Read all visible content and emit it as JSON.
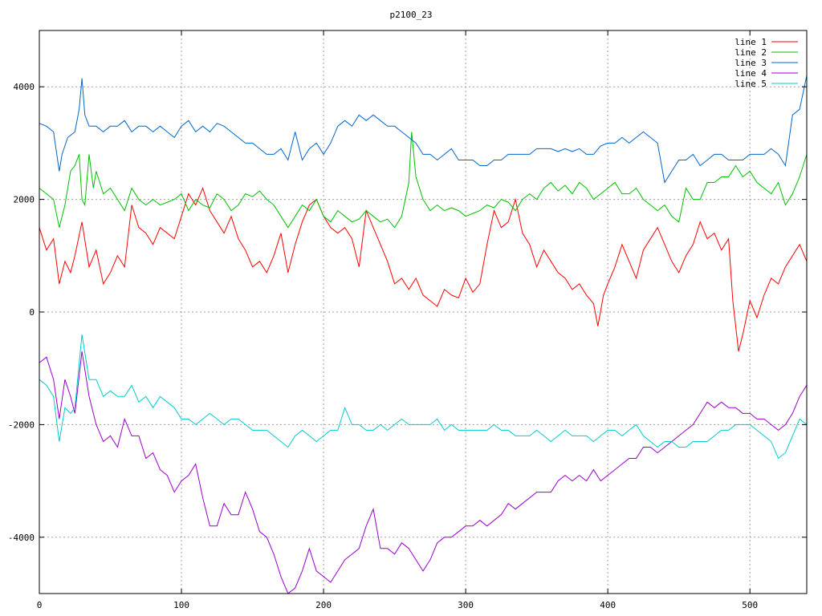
{
  "chart_data": {
    "type": "line",
    "title": "p2100_23",
    "xlabel": "",
    "ylabel": "",
    "xlim": [
      0,
      540
    ],
    "ylim": [
      -5000,
      5000
    ],
    "x_ticks": [
      0,
      100,
      200,
      300,
      400,
      500
    ],
    "y_ticks": [
      -4000,
      -2000,
      0,
      2000,
      4000
    ],
    "grid": true,
    "legend_position": "top-right",
    "series": [
      {
        "name": "line 1",
        "color": "#ff0000",
        "x": [
          0,
          5,
          10,
          14,
          18,
          22,
          25,
          30,
          35,
          40,
          45,
          50,
          55,
          60,
          65,
          70,
          75,
          80,
          85,
          90,
          95,
          100,
          105,
          110,
          115,
          120,
          125,
          130,
          135,
          140,
          145,
          150,
          155,
          160,
          165,
          170,
          175,
          180,
          185,
          190,
          195,
          200,
          205,
          210,
          215,
          220,
          225,
          230,
          235,
          240,
          245,
          250,
          255,
          260,
          265,
          270,
          275,
          280,
          285,
          290,
          295,
          300,
          305,
          310,
          315,
          320,
          325,
          330,
          335,
          340,
          345,
          350,
          355,
          360,
          365,
          370,
          375,
          380,
          385,
          390,
          393,
          397,
          400,
          405,
          410,
          415,
          420,
          425,
          430,
          435,
          440,
          445,
          450,
          455,
          460,
          465,
          470,
          475,
          480,
          485,
          488,
          492,
          495,
          500,
          505,
          510,
          515,
          520,
          525,
          530,
          535,
          540
        ],
        "y": [
          1500,
          1100,
          1300,
          500,
          900,
          700,
          1000,
          1600,
          800,
          1100,
          500,
          700,
          1000,
          800,
          1900,
          1500,
          1400,
          1200,
          1500,
          1400,
          1300,
          1700,
          2100,
          1900,
          2200,
          1800,
          1600,
          1400,
          1700,
          1300,
          1100,
          800,
          900,
          700,
          1000,
          1400,
          700,
          1200,
          1600,
          1900,
          2000,
          1700,
          1500,
          1400,
          1500,
          1300,
          800,
          1800,
          1500,
          1200,
          900,
          500,
          600,
          400,
          600,
          300,
          200,
          100,
          400,
          300,
          250,
          600,
          350,
          500,
          1200,
          1800,
          1500,
          1600,
          2000,
          1400,
          1200,
          800,
          1100,
          900,
          700,
          600,
          400,
          500,
          300,
          150,
          -250,
          300,
          500,
          800,
          1200,
          900,
          600,
          1100,
          1300,
          1500,
          1200,
          900,
          700,
          1000,
          1200,
          1600,
          1300,
          1400,
          1100,
          1300,
          200,
          -700,
          -400,
          200,
          -100,
          300,
          600,
          500,
          800,
          1000,
          1200,
          900
        ],
        "_": null
      },
      {
        "name": "line 2",
        "color": "#00c000",
        "x": [
          0,
          5,
          10,
          14,
          18,
          22,
          25,
          28,
          30,
          32,
          35,
          38,
          40,
          45,
          50,
          55,
          60,
          65,
          70,
          75,
          80,
          85,
          90,
          95,
          100,
          105,
          110,
          115,
          120,
          125,
          130,
          135,
          140,
          145,
          150,
          155,
          160,
          165,
          170,
          175,
          180,
          185,
          190,
          195,
          200,
          205,
          210,
          215,
          220,
          225,
          230,
          235,
          240,
          245,
          250,
          255,
          260,
          262,
          265,
          270,
          275,
          280,
          285,
          290,
          295,
          300,
          305,
          310,
          315,
          320,
          325,
          330,
          335,
          340,
          345,
          350,
          355,
          360,
          365,
          370,
          375,
          380,
          385,
          390,
          395,
          400,
          405,
          410,
          415,
          420,
          425,
          430,
          435,
          440,
          445,
          450,
          455,
          460,
          465,
          470,
          475,
          480,
          485,
          490,
          495,
          500,
          505,
          510,
          515,
          520,
          525,
          530,
          535,
          540
        ],
        "y": [
          2200,
          2100,
          2000,
          1500,
          1900,
          2500,
          2600,
          2800,
          2000,
          1900,
          2800,
          2200,
          2500,
          2100,
          2200,
          2000,
          1800,
          2200,
          2000,
          1900,
          2000,
          1900,
          1950,
          2000,
          2100,
          1800,
          2000,
          1900,
          1850,
          2100,
          2000,
          1800,
          1900,
          2100,
          2050,
          2150,
          2000,
          1900,
          1700,
          1500,
          1700,
          1900,
          1800,
          2000,
          1700,
          1600,
          1800,
          1700,
          1600,
          1650,
          1800,
          1700,
          1600,
          1650,
          1500,
          1700,
          2300,
          3200,
          2400,
          2000,
          1800,
          1900,
          1800,
          1850,
          1800,
          1700,
          1750,
          1800,
          1900,
          1850,
          2000,
          1950,
          1800,
          2000,
          2100,
          2000,
          2200,
          2300,
          2150,
          2250,
          2100,
          2300,
          2200,
          2000,
          2100,
          2200,
          2300,
          2100,
          2100,
          2200,
          2000,
          1900,
          1800,
          1900,
          1700,
          1600,
          2200,
          2000,
          2000,
          2300,
          2300,
          2400,
          2400,
          2600,
          2400,
          2500,
          2300,
          2200,
          2100,
          2300,
          1900,
          2100,
          2400,
          2800
        ],
        "_": null
      },
      {
        "name": "line 3",
        "color": "#0066cc",
        "x": [
          0,
          5,
          10,
          14,
          16,
          20,
          25,
          28,
          30,
          32,
          35,
          40,
          45,
          50,
          55,
          60,
          65,
          70,
          75,
          80,
          85,
          90,
          95,
          100,
          105,
          110,
          115,
          120,
          125,
          130,
          135,
          140,
          145,
          150,
          155,
          160,
          165,
          170,
          175,
          180,
          185,
          190,
          195,
          200,
          205,
          210,
          215,
          220,
          225,
          230,
          235,
          240,
          245,
          250,
          255,
          260,
          265,
          270,
          275,
          280,
          285,
          290,
          295,
          300,
          305,
          310,
          315,
          320,
          325,
          330,
          335,
          340,
          345,
          350,
          355,
          360,
          365,
          370,
          375,
          380,
          385,
          390,
          395,
          400,
          405,
          410,
          415,
          420,
          425,
          430,
          435,
          440,
          445,
          450,
          455,
          460,
          465,
          470,
          475,
          480,
          485,
          490,
          495,
          500,
          505,
          510,
          515,
          520,
          525,
          530,
          535,
          540
        ],
        "y": [
          3350,
          3300,
          3200,
          2500,
          2800,
          3100,
          3200,
          3600,
          4150,
          3500,
          3300,
          3300,
          3200,
          3300,
          3300,
          3400,
          3200,
          3300,
          3300,
          3200,
          3300,
          3200,
          3100,
          3300,
          3400,
          3200,
          3300,
          3200,
          3350,
          3300,
          3200,
          3100,
          3000,
          3000,
          2900,
          2800,
          2800,
          2900,
          2700,
          3200,
          2700,
          2900,
          3000,
          2800,
          3000,
          3300,
          3400,
          3300,
          3500,
          3400,
          3500,
          3400,
          3300,
          3300,
          3200,
          3100,
          3000,
          2800,
          2800,
          2700,
          2800,
          2900,
          2700,
          2700,
          2700,
          2600,
          2600,
          2700,
          2700,
          2800,
          2800,
          2800,
          2800,
          2900,
          2900,
          2900,
          2850,
          2900,
          2850,
          2900,
          2800,
          2800,
          2950,
          3000,
          3000,
          3100,
          3000,
          3100,
          3200,
          3100,
          3000,
          2300,
          2500,
          2700,
          2700,
          2800,
          2600,
          2700,
          2800,
          2800,
          2700,
          2700,
          2700,
          2800,
          2800,
          2800,
          2900,
          2800,
          2600,
          3500,
          3600,
          4200
        ],
        "_": null
      },
      {
        "name": "line 4",
        "color": "#9900cc",
        "x": [
          0,
          5,
          10,
          14,
          18,
          22,
          25,
          30,
          35,
          40,
          45,
          50,
          55,
          60,
          65,
          70,
          75,
          80,
          85,
          90,
          95,
          100,
          105,
          110,
          115,
          120,
          125,
          130,
          135,
          140,
          145,
          150,
          155,
          160,
          165,
          170,
          175,
          180,
          185,
          190,
          195,
          200,
          205,
          210,
          215,
          220,
          225,
          230,
          235,
          240,
          245,
          250,
          255,
          260,
          265,
          270,
          275,
          280,
          285,
          290,
          295,
          300,
          305,
          310,
          315,
          320,
          325,
          330,
          335,
          340,
          345,
          350,
          355,
          360,
          365,
          370,
          375,
          380,
          385,
          390,
          395,
          400,
          405,
          410,
          415,
          420,
          425,
          430,
          435,
          440,
          445,
          450,
          455,
          460,
          465,
          470,
          475,
          480,
          485,
          490,
          495,
          500,
          505,
          510,
          515,
          520,
          525,
          530,
          535,
          540
        ],
        "y": [
          -900,
          -800,
          -1200,
          -1900,
          -1200,
          -1500,
          -1800,
          -700,
          -1500,
          -2000,
          -2300,
          -2200,
          -2400,
          -1900,
          -2200,
          -2200,
          -2600,
          -2500,
          -2800,
          -2900,
          -3200,
          -3000,
          -2900,
          -2700,
          -3300,
          -3800,
          -3800,
          -3400,
          -3600,
          -3600,
          -3200,
          -3500,
          -3900,
          -4000,
          -4300,
          -4700,
          -5000,
          -4900,
          -4600,
          -4200,
          -4600,
          -4700,
          -4800,
          -4600,
          -4400,
          -4300,
          -4200,
          -3800,
          -3500,
          -4200,
          -4200,
          -4300,
          -4100,
          -4200,
          -4400,
          -4600,
          -4400,
          -4100,
          -4000,
          -4000,
          -3900,
          -3800,
          -3800,
          -3700,
          -3800,
          -3700,
          -3600,
          -3400,
          -3500,
          -3400,
          -3300,
          -3200,
          -3200,
          -3200,
          -3000,
          -2900,
          -3000,
          -2900,
          -3000,
          -2800,
          -3000,
          -2900,
          -2800,
          -2700,
          -2600,
          -2600,
          -2400,
          -2400,
          -2500,
          -2400,
          -2300,
          -2200,
          -2100,
          -2000,
          -1800,
          -1600,
          -1700,
          -1600,
          -1700,
          -1700,
          -1800,
          -1800,
          -1900,
          -1900,
          -2000,
          -2100,
          -2000,
          -1800,
          -1500,
          -1300
        ],
        "_": null
      },
      {
        "name": "line 5",
        "color": "#00cccc",
        "x": [
          0,
          5,
          10,
          14,
          18,
          22,
          25,
          30,
          35,
          40,
          45,
          50,
          55,
          60,
          65,
          70,
          75,
          80,
          85,
          90,
          95,
          100,
          105,
          110,
          115,
          120,
          125,
          130,
          135,
          140,
          145,
          150,
          155,
          160,
          165,
          170,
          175,
          180,
          185,
          190,
          195,
          200,
          205,
          210,
          215,
          220,
          225,
          230,
          235,
          240,
          245,
          250,
          255,
          260,
          265,
          270,
          275,
          280,
          285,
          290,
          295,
          300,
          305,
          310,
          315,
          320,
          325,
          330,
          335,
          340,
          345,
          350,
          355,
          360,
          365,
          370,
          375,
          380,
          385,
          390,
          395,
          400,
          405,
          410,
          415,
          420,
          425,
          430,
          435,
          440,
          445,
          450,
          455,
          460,
          465,
          470,
          475,
          480,
          485,
          490,
          495,
          500,
          505,
          510,
          515,
          520,
          525,
          530,
          535,
          540
        ],
        "y": [
          -1200,
          -1300,
          -1500,
          -2300,
          -1700,
          -1800,
          -1700,
          -400,
          -1200,
          -1200,
          -1500,
          -1400,
          -1500,
          -1500,
          -1300,
          -1600,
          -1500,
          -1700,
          -1500,
          -1600,
          -1700,
          -1900,
          -1900,
          -2000,
          -1900,
          -1800,
          -1900,
          -2000,
          -1900,
          -1900,
          -2000,
          -2100,
          -2100,
          -2100,
          -2200,
          -2300,
          -2400,
          -2200,
          -2100,
          -2200,
          -2300,
          -2200,
          -2100,
          -2100,
          -1700,
          -2000,
          -2000,
          -2100,
          -2100,
          -2000,
          -2100,
          -2000,
          -1900,
          -2000,
          -2000,
          -2000,
          -2000,
          -1900,
          -2100,
          -2000,
          -2100,
          -2100,
          -2100,
          -2100,
          -2100,
          -2000,
          -2100,
          -2100,
          -2200,
          -2200,
          -2200,
          -2100,
          -2200,
          -2300,
          -2200,
          -2100,
          -2200,
          -2200,
          -2200,
          -2300,
          -2200,
          -2100,
          -2100,
          -2200,
          -2100,
          -2000,
          -2200,
          -2300,
          -2400,
          -2300,
          -2300,
          -2400,
          -2400,
          -2300,
          -2300,
          -2300,
          -2200,
          -2100,
          -2100,
          -2000,
          -2000,
          -2000,
          -2100,
          -2200,
          -2300,
          -2600,
          -2500,
          -2200,
          -1900,
          -2000
        ],
        "_": null
      }
    ]
  }
}
